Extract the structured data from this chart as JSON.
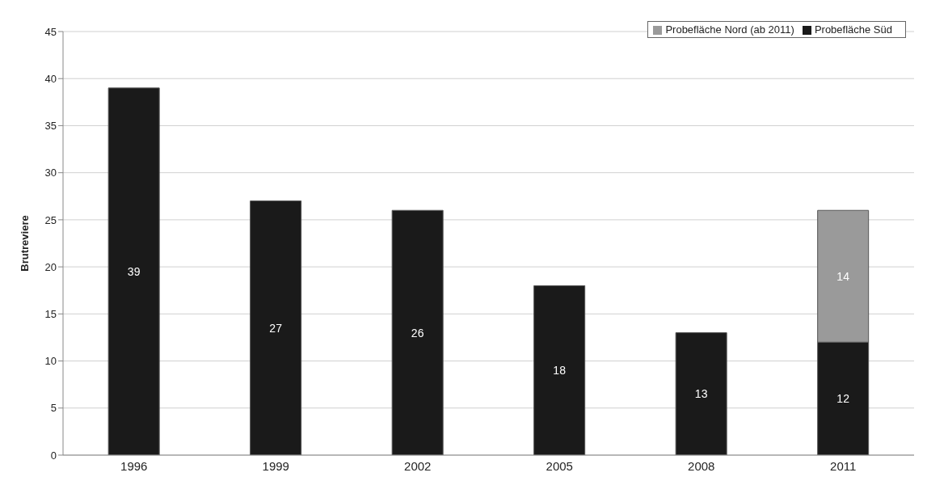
{
  "chart_data": {
    "type": "bar",
    "stacked": true,
    "ylabel": "Brutreviere",
    "categories": [
      "1996",
      "1999",
      "2002",
      "2005",
      "2008",
      "2011"
    ],
    "series": [
      {
        "name": "Probefläche Süd",
        "color": "#1a1a1a",
        "values": [
          39,
          27,
          26,
          18,
          13,
          12
        ]
      },
      {
        "name": "Probefläche Nord (ab 2011)",
        "color": "#9a9a9a",
        "values": [
          null,
          null,
          null,
          null,
          null,
          14
        ]
      }
    ],
    "ylim": [
      0,
      45
    ],
    "yticks": [
      0,
      5,
      10,
      15,
      20,
      25,
      30,
      35,
      40,
      45
    ],
    "grid": "y",
    "legend": "top right",
    "data_labels": true
  }
}
